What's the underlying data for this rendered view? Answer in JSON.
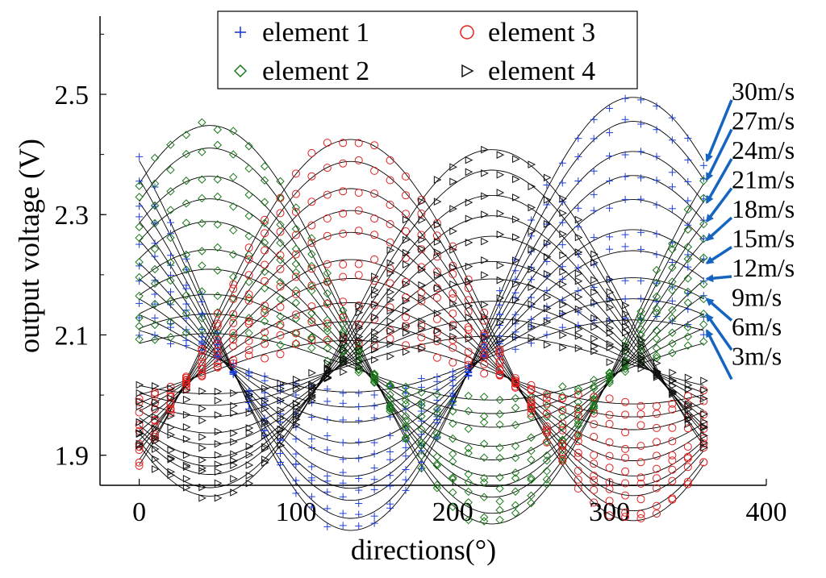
{
  "chart_data": {
    "type": "scatter",
    "xlabel": "directions(°)",
    "ylabel": "output voltage (V)",
    "xlim": [
      -25,
      400
    ],
    "ylim": [
      1.85,
      2.63
    ],
    "xticks": [
      0,
      100,
      200,
      300,
      400
    ],
    "yticks": [
      1.9,
      2.1,
      2.3,
      2.5
    ],
    "x_step": 10,
    "x_range": [
      0,
      360
    ],
    "grid": false,
    "legend": {
      "placement": "top-center",
      "columns": 2
    },
    "series": [
      {
        "name": "element 1",
        "marker": "plus",
        "color": "#1f3fd8",
        "peak_direction": 315
      },
      {
        "name": "element 2",
        "marker": "diamond",
        "color": "#1a7a1a",
        "peak_direction": 45
      },
      {
        "name": "element 3",
        "marker": "circle",
        "color": "#e02020",
        "peak_direction": 135
      },
      {
        "name": "element 4",
        "marker": "triangle-right",
        "color": "#111111",
        "peak_direction": 225
      }
    ],
    "fit_curve_color": "#000000",
    "wind_speeds": [
      "3m/s",
      "6m/s",
      "9m/s",
      "12m/s",
      "15m/s",
      "18m/s",
      "21m/s",
      "24m/s",
      "27m/s",
      "30m/s"
    ],
    "speed_offsets": [
      2.05,
      2.055,
      2.06,
      2.065,
      2.07,
      2.08,
      2.09,
      2.1,
      2.11,
      2.12
    ],
    "speed_amplitudes": [
      0.06,
      0.09,
      0.12,
      0.16,
      0.19,
      0.23,
      0.26,
      0.29,
      0.33,
      0.36
    ],
    "series_offset_adjust": [
      0.015,
      -0.003,
      -0.012,
      0.0
    ],
    "series_amplitude_scale": [
      1.0,
      0.92,
      0.88,
      0.8
    ],
    "annotation_arrow_color": "#1565c0"
  }
}
